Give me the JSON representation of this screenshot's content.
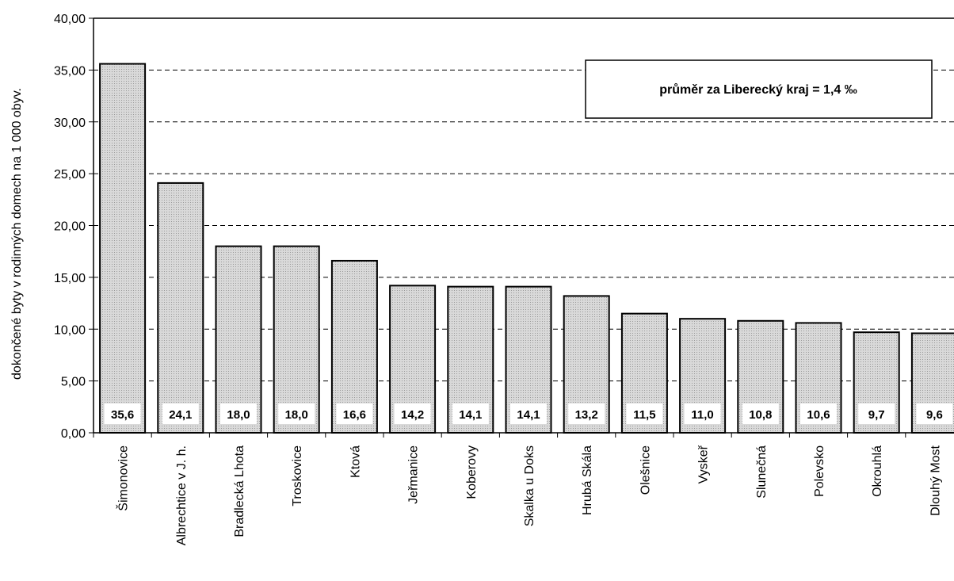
{
  "chart_data": {
    "type": "bar",
    "categories": [
      "Šimonovice",
      "Albrechtice v J. h.",
      "Bradlecká Lhota",
      "Troskovice",
      "Ktová",
      "Jeřmanice",
      "Koberovy",
      "Skalka u Doks",
      "Hrubá Skála",
      "Olešnice",
      "Vyskeř",
      "Slunečná",
      "Polevsko",
      "Okrouhlá",
      "Dlouhý Most"
    ],
    "values": [
      35.6,
      24.1,
      18.0,
      18.0,
      16.6,
      14.2,
      14.1,
      14.1,
      13.2,
      11.5,
      11.0,
      10.8,
      10.6,
      9.7,
      9.6
    ],
    "data_labels": [
      "35,6",
      "24,1",
      "18,0",
      "18,0",
      "16,6",
      "14,2",
      "14,1",
      "14,1",
      "13,2",
      "11,5",
      "11,0",
      "10,8",
      "10,6",
      "9,7",
      "9,6"
    ],
    "ylabel": "dokončené byty v rodinných domech na 1 000 obyv.",
    "xlabel": "",
    "ylim": [
      0,
      40
    ],
    "yticks": [
      0,
      5,
      10,
      15,
      20,
      25,
      30,
      35,
      40
    ],
    "ytick_labels": [
      "0,00",
      "5,00",
      "10,00",
      "15,00",
      "20,00",
      "25,00",
      "30,00",
      "35,00",
      "40,00"
    ],
    "grid": "horizontal dashed",
    "annotation": "průměr za Liberecký kraj = 1,4 ‰",
    "bar_fill": "#cfcfcf",
    "bar_stroke": "#000000"
  }
}
